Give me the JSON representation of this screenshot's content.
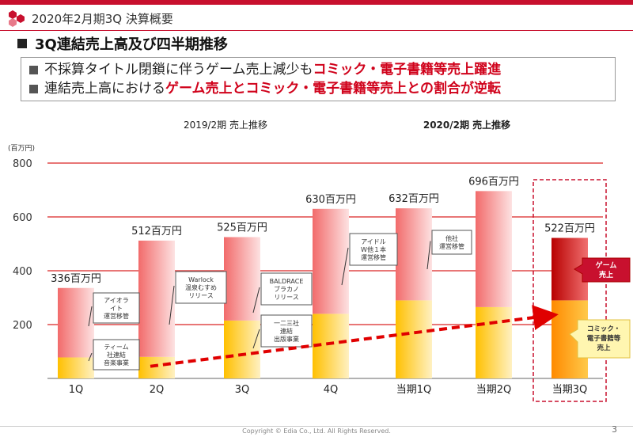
{
  "header": {
    "title": "2020年2月期3Q 決算概要"
  },
  "section": {
    "title": "3Q連結売上高及び四半期推移"
  },
  "summary": {
    "line1_prefix": "不採算タイトル閉鎖に伴うゲーム売上減少も",
    "line1_highlight": "コミック・電子書籍等売上躍進",
    "line2_prefix": "連結売上高における",
    "line2_highlight": "ゲーム売上とコミック・電子書籍等売上との割合が逆転"
  },
  "footer": {
    "copyright": "Copyright © Edia Co., Ltd. All Rights Reserved.",
    "page": "3"
  },
  "colors": {
    "game": "#f26b6b",
    "comic": "#ffc000",
    "accent": "#c8102e",
    "arrow": "#e00000"
  },
  "chart_data": {
    "type": "bar",
    "ylabel": "(百万円)",
    "ylim": [
      0,
      800
    ],
    "yticks": [
      200,
      400,
      600,
      800
    ],
    "grid": true,
    "period_labels": [
      {
        "text": "2019/2期 売上推移",
        "bold": false
      },
      {
        "text": "2020/2期 売上推移",
        "bold": true
      }
    ],
    "categories": [
      "1Q",
      "2Q",
      "3Q",
      "4Q",
      "当期1Q",
      "当期2Q",
      "当期3Q"
    ],
    "totals": [
      336,
      512,
      525,
      630,
      632,
      696,
      522
    ],
    "total_labels": [
      "336百万円",
      "512百万円",
      "525百万円",
      "630百万円",
      "632百万円",
      "696百万円",
      "522百万円"
    ],
    "series": [
      {
        "name": "コミック・電子書籍等売上",
        "values": [
          78,
          80,
          215,
          240,
          290,
          265,
          290
        ]
      },
      {
        "name": "ゲーム売上",
        "values": [
          258,
          432,
          310,
          390,
          342,
          431,
          232
        ]
      }
    ],
    "annotations": [
      [
        "アイオラ",
        "イト",
        "運営移管"
      ],
      [
        "ティーム",
        "社連結",
        "音楽事業"
      ],
      [
        "Warlock",
        "温泉むすめ",
        "リリース"
      ],
      [
        "BALDRACE",
        "ブラカノ",
        "リリース"
      ],
      [
        "一二三社",
        "連結",
        "出版事業"
      ],
      [
        "アイドル",
        "W他１本",
        "運営移管"
      ],
      [
        "他社",
        "運営移管"
      ]
    ],
    "legend_callouts": [
      {
        "lines": [
          "ゲーム",
          "売上"
        ]
      },
      {
        "lines": [
          "コミック・",
          "電子書籍等",
          "売上"
        ]
      }
    ]
  }
}
